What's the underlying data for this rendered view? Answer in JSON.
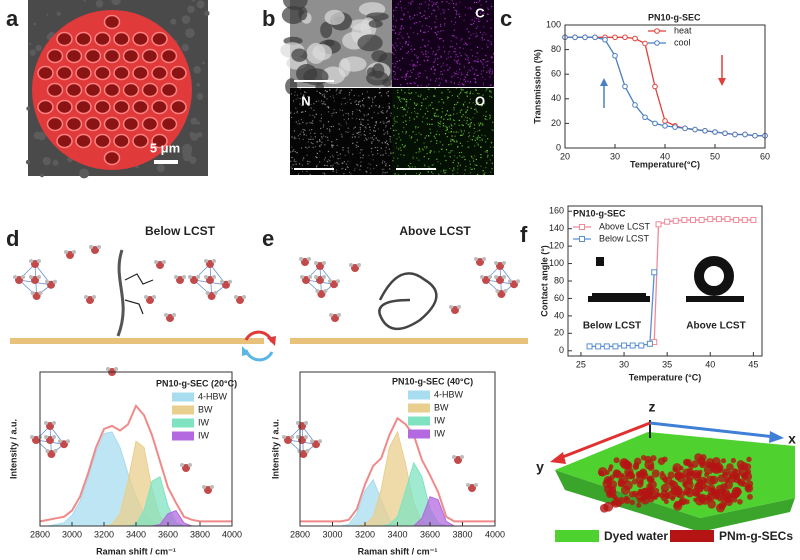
{
  "panel_labels": [
    "a",
    "b",
    "c",
    "d",
    "e",
    "f"
  ],
  "sem_image": {
    "scale_bar": "5 μm"
  },
  "eds_maps": {
    "labels": [
      "C",
      "N",
      "O"
    ]
  },
  "schematics": {
    "below_title": "Below LCST",
    "above_title": "Above LCST"
  },
  "render_3d": {
    "axes": [
      "z",
      "x",
      "y"
    ],
    "legend": [
      "Dyed water",
      "PNm-g-SECs"
    ],
    "colors": [
      "#4fd12f",
      "#b51414"
    ]
  },
  "chart_data": [
    {
      "type": "line",
      "xlabel": "Temperature(°C)",
      "ylabel": "Transmission (%)",
      "legend_title": "PN10-g-SEC",
      "marker": "circle",
      "x": [
        20,
        22,
        24,
        26,
        28,
        30,
        32,
        34,
        36,
        38,
        40,
        42,
        44,
        46,
        48,
        50,
        52,
        54,
        56,
        58,
        60
      ],
      "xlim": [
        20,
        60
      ],
      "xticks": [
        20,
        30,
        40,
        50,
        60
      ],
      "ylim": [
        0,
        100
      ],
      "yticks": [
        0,
        20,
        40,
        60,
        80,
        100
      ],
      "series": [
        {
          "name": "heat",
          "color": "#e0403a",
          "values": [
            90,
            90,
            90,
            90,
            90,
            90,
            90,
            89,
            85,
            50,
            22,
            18,
            16,
            15,
            14,
            13,
            12,
            11,
            11,
            10,
            10
          ]
        },
        {
          "name": "cool",
          "color": "#4a7fc1",
          "values": [
            90,
            90,
            90,
            90,
            88,
            75,
            50,
            35,
            25,
            20,
            18,
            17,
            16,
            15,
            14,
            13,
            12,
            11,
            11,
            10,
            10
          ]
        }
      ]
    },
    {
      "type": "line",
      "xlabel": "Temperature (°C)",
      "ylabel": "Contact angle (°)",
      "legend_title": "PN10-g-SEC",
      "marker": "square",
      "annotations": [
        "Below LCST",
        "Above LCST"
      ],
      "x": [
        26,
        27,
        28,
        29,
        30,
        31,
        32,
        33,
        33.5,
        34,
        35,
        36,
        37,
        38,
        39,
        40,
        41,
        42,
        43,
        44,
        45
      ],
      "xlim": [
        23.5,
        46
      ],
      "xticks": [
        25,
        30,
        35,
        40,
        45
      ],
      "ylim": [
        -6,
        166
      ],
      "yticks": [
        0,
        20,
        40,
        60,
        80,
        100,
        120,
        140,
        160
      ],
      "series": [
        {
          "name": "Above LCST",
          "color": "#f08a9a",
          "values": [
            null,
            null,
            null,
            null,
            null,
            null,
            null,
            null,
            10,
            145,
            148,
            149,
            150,
            150,
            150,
            151,
            151,
            151,
            150,
            150,
            150
          ]
        },
        {
          "name": "Below LCST",
          "color": "#5b8fd0",
          "values": [
            5,
            5,
            5,
            5,
            6,
            6,
            6,
            8,
            90,
            null,
            null,
            null,
            null,
            null,
            null,
            null,
            null,
            null,
            null,
            null,
            null
          ]
        }
      ]
    },
    {
      "type": "area",
      "xlabel": "Raman shift / cm⁻¹",
      "ylabel": "Intensity / a.u.",
      "legend_title": "PN10-g-SEC (20°C)",
      "x": [
        2800,
        2850,
        2900,
        2950,
        3000,
        3050,
        3100,
        3150,
        3200,
        3250,
        3300,
        3350,
        3400,
        3450,
        3500,
        3550,
        3600,
        3650,
        3700,
        3750,
        3800,
        3850,
        3900,
        3950,
        4000
      ],
      "xlim": [
        2800,
        4000
      ],
      "xticks": [
        2800,
        3000,
        3200,
        3400,
        3600,
        3800,
        4000
      ],
      "ylim": [
        0,
        100
      ],
      "series": [
        {
          "name": "4-HBW",
          "color": "#a8dcef",
          "fill": true,
          "values": [
            0,
            0,
            1,
            2,
            7,
            16,
            31,
            48,
            60,
            61,
            51,
            34,
            19,
            8,
            3,
            1,
            0,
            0,
            0,
            0,
            0,
            0,
            0,
            0,
            0
          ]
        },
        {
          "name": "BW",
          "color": "#e9cf8e",
          "fill": true,
          "values": [
            0,
            0,
            0,
            0,
            0,
            0,
            0,
            0,
            0,
            1,
            8,
            29,
            55,
            51,
            24,
            6,
            1,
            0,
            0,
            0,
            0,
            0,
            0,
            0,
            0
          ]
        },
        {
          "name": "IW",
          "color": "#7fe3c2",
          "fill": true,
          "values": [
            0,
            0,
            0,
            0,
            0,
            0,
            0,
            0,
            0,
            0,
            0,
            0,
            1,
            10,
            29,
            32,
            13,
            2,
            0,
            0,
            0,
            0,
            0,
            0,
            0
          ]
        },
        {
          "name": "IW",
          "color": "#b36ae0",
          "fill": true,
          "values": [
            0,
            0,
            0,
            0,
            0,
            0,
            0,
            0,
            0,
            0,
            0,
            0,
            0,
            0,
            0,
            1,
            8,
            10,
            2,
            0,
            0,
            0,
            0,
            0,
            0
          ]
        },
        {
          "color": "#f08a8a",
          "fill": false,
          "values": [
            3,
            4,
            5,
            6,
            10,
            19,
            34,
            51,
            63,
            65,
            62,
            66,
            78,
            72,
            59,
            42,
            25,
            15,
            6,
            4,
            3,
            3,
            3,
            3,
            3
          ]
        }
      ]
    },
    {
      "type": "area",
      "xlabel": "Raman shift / cm⁻¹",
      "ylabel": "Intensity / a.u.",
      "legend_title": "PN10-g-SEC (40°C)",
      "x": [
        2800,
        2850,
        2900,
        2950,
        3000,
        3050,
        3100,
        3150,
        3200,
        3250,
        3300,
        3350,
        3400,
        3450,
        3500,
        3550,
        3600,
        3650,
        3700,
        3750,
        3800,
        3850,
        3900,
        3950,
        4000
      ],
      "xlim": [
        2800,
        4000
      ],
      "xticks": [
        2800,
        3000,
        3200,
        3400,
        3600,
        3800,
        4000
      ],
      "ylim": [
        0,
        100
      ],
      "series": [
        {
          "name": "4-HBW",
          "color": "#a8dcef",
          "fill": true,
          "values": [
            0,
            0,
            0,
            0,
            0,
            0,
            1,
            8,
            23,
            30,
            17,
            4,
            0,
            0,
            0,
            0,
            0,
            0,
            0,
            0,
            0,
            0,
            0,
            0,
            0
          ]
        },
        {
          "name": "BW",
          "color": "#e9cf8e",
          "fill": true,
          "values": [
            0,
            0,
            0,
            0,
            0,
            0,
            0,
            0,
            1,
            6,
            24,
            51,
            61,
            40,
            15,
            3,
            0,
            0,
            0,
            0,
            0,
            0,
            0,
            0,
            0
          ]
        },
        {
          "name": "IW",
          "color": "#7fe3c2",
          "fill": true,
          "values": [
            0,
            0,
            0,
            0,
            0,
            0,
            0,
            0,
            0,
            0,
            0,
            1,
            6,
            23,
            41,
            32,
            11,
            2,
            0,
            0,
            0,
            0,
            0,
            0,
            0
          ]
        },
        {
          "name": "IW",
          "color": "#b36ae0",
          "fill": true,
          "values": [
            0,
            0,
            0,
            0,
            0,
            0,
            0,
            0,
            0,
            0,
            0,
            0,
            0,
            0,
            0,
            5,
            19,
            17,
            3,
            0,
            0,
            0,
            0,
            0,
            0
          ]
        },
        {
          "color": "#f08a8a",
          "fill": false,
          "values": [
            3,
            3,
            3,
            3,
            3,
            3,
            4,
            11,
            27,
            39,
            44,
            59,
            70,
            66,
            59,
            43,
            33,
            22,
            6,
            3,
            3,
            3,
            3,
            3,
            3
          ]
        }
      ]
    }
  ]
}
